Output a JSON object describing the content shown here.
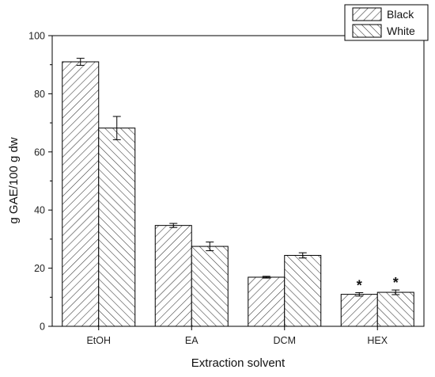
{
  "chart_data": {
    "type": "bar",
    "categories": [
      "EtOH",
      "EA",
      "DCM",
      "HEX"
    ],
    "series": [
      {
        "name": "Black",
        "values": [
          91,
          34.7,
          16.9,
          11.0
        ],
        "errors": [
          1.2,
          0.7,
          0.3,
          0.6
        ],
        "pattern": "forward-hatch"
      },
      {
        "name": "White",
        "values": [
          68.2,
          27.5,
          24.4,
          11.7
        ],
        "errors": [
          4.0,
          1.5,
          0.9,
          0.8
        ],
        "pattern": "back-hatch"
      }
    ],
    "annotations": [
      {
        "category": "HEX",
        "series": "Black",
        "text": "*"
      },
      {
        "category": "HEX",
        "series": "White",
        "text": "*"
      }
    ],
    "title": "",
    "xlabel": "Extraction solvent",
    "ylabel": "g GAE/100 g dw",
    "ylim": [
      0,
      100
    ],
    "yticks": [
      0,
      20,
      40,
      60,
      80,
      100
    ],
    "grid": false,
    "legend_position": "top-right, outside plot"
  }
}
